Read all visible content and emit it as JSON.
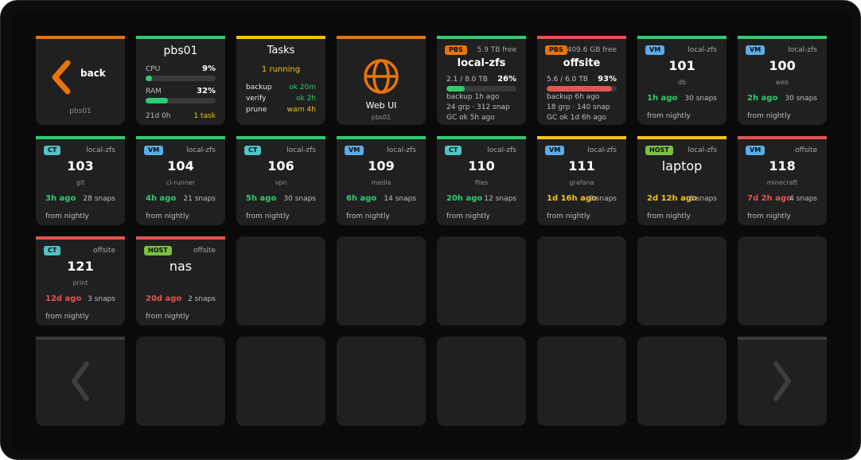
{
  "colors": {
    "green": "#2ecc71",
    "orange": "#e8750a",
    "yellow": "#f2c316",
    "red": "#e55353",
    "ct": "#4fc3c6",
    "vm": "#5aaee8",
    "host": "#7bc043",
    "pbs": "#e8750a"
  },
  "back": {
    "label": "back",
    "sub": "pbs01"
  },
  "host": {
    "title": "pbs01",
    "cpu_label": "CPU",
    "cpu_value": "9%",
    "cpu_fraction": 0.09,
    "ram_label": "RAM",
    "ram_value": "32%",
    "ram_fraction": 0.32,
    "uptime": "21d 0h",
    "tasks": "1 task"
  },
  "tasks": {
    "title": "Tasks",
    "running": "1 running",
    "rows": [
      {
        "name": "backup",
        "status": "ok 20m",
        "state": "ok"
      },
      {
        "name": "verify",
        "status": "ok 2h",
        "state": "ok"
      },
      {
        "name": "prune",
        "status": "warn 4h",
        "state": "warn"
      }
    ]
  },
  "webui": {
    "label": "Web UI",
    "sub": "pbs01",
    "icon": "globe-icon"
  },
  "datastores": [
    {
      "badge": "PBS",
      "free": "5.9 TB free",
      "name": "local-zfs",
      "usage": "2.1 / 8.0 TB",
      "percent": "26%",
      "fraction": 0.26,
      "backup": "backup 1h ago",
      "counts": "24 grp · 312 snap",
      "gc": "GC ok 5h ago",
      "status": "green"
    },
    {
      "badge": "PBS",
      "free": "409.6 GB free",
      "name": "offsite",
      "usage": "5.6 / 6.0 TB",
      "percent": "93%",
      "fraction": 0.93,
      "backup": "backup 6h ago",
      "counts": "18 grp · 140 snap",
      "gc": "GC ok 1d 6h ago",
      "status": "red"
    }
  ],
  "guests": [
    {
      "type": "VM",
      "store": "local-zfs",
      "id": "101",
      "name": "db",
      "ago": "1h ago",
      "snaps": "30 snaps",
      "source": "from nightly",
      "status": "green"
    },
    {
      "type": "VM",
      "store": "local-zfs",
      "id": "100",
      "name": "web",
      "ago": "2h ago",
      "snaps": "30 snaps",
      "source": "from nightly",
      "status": "green"
    },
    {
      "type": "CT",
      "store": "local-zfs",
      "id": "103",
      "name": "git",
      "ago": "3h ago",
      "snaps": "28 snaps",
      "source": "from nightly",
      "status": "green"
    },
    {
      "type": "VM",
      "store": "local-zfs",
      "id": "104",
      "name": "ci-runner",
      "ago": "4h ago",
      "snaps": "21 snaps",
      "source": "from nightly",
      "status": "green"
    },
    {
      "type": "CT",
      "store": "local-zfs",
      "id": "106",
      "name": "vpn",
      "ago": "5h ago",
      "snaps": "30 snaps",
      "source": "from nightly",
      "status": "green"
    },
    {
      "type": "VM",
      "store": "local-zfs",
      "id": "109",
      "name": "media",
      "ago": "6h ago",
      "snaps": "14 snaps",
      "source": "from nightly",
      "status": "green"
    },
    {
      "type": "CT",
      "store": "local-zfs",
      "id": "110",
      "name": "files",
      "ago": "20h ago",
      "snaps": "12 snaps",
      "source": "from nightly",
      "status": "green"
    },
    {
      "type": "VM",
      "store": "local-zfs",
      "id": "111",
      "name": "grafana",
      "ago": "1d 16h ago",
      "snaps": "9 snaps",
      "source": "from nightly",
      "status": "yellow"
    },
    {
      "type": "HOST",
      "store": "local-zfs",
      "id": "laptop",
      "name": "",
      "ago": "2d 12h ago",
      "snaps": "6 snaps",
      "source": "from nightly",
      "status": "yellow"
    },
    {
      "type": "VM",
      "store": "offsite",
      "id": "118",
      "name": "minecraft",
      "ago": "7d 2h ago",
      "snaps": "4 snaps",
      "source": "from nightly",
      "status": "red"
    },
    {
      "type": "CT",
      "store": "offsite",
      "id": "121",
      "name": "print",
      "ago": "12d ago",
      "snaps": "3 snaps",
      "source": "from nightly",
      "status": "red"
    },
    {
      "type": "HOST",
      "store": "offsite",
      "id": "nas",
      "name": "",
      "ago": "20d ago",
      "snaps": "2 snaps",
      "source": "from nightly",
      "status": "red"
    }
  ],
  "nav": {
    "prev_icon": "chevron-left-icon",
    "next_icon": "chevron-right-icon"
  }
}
